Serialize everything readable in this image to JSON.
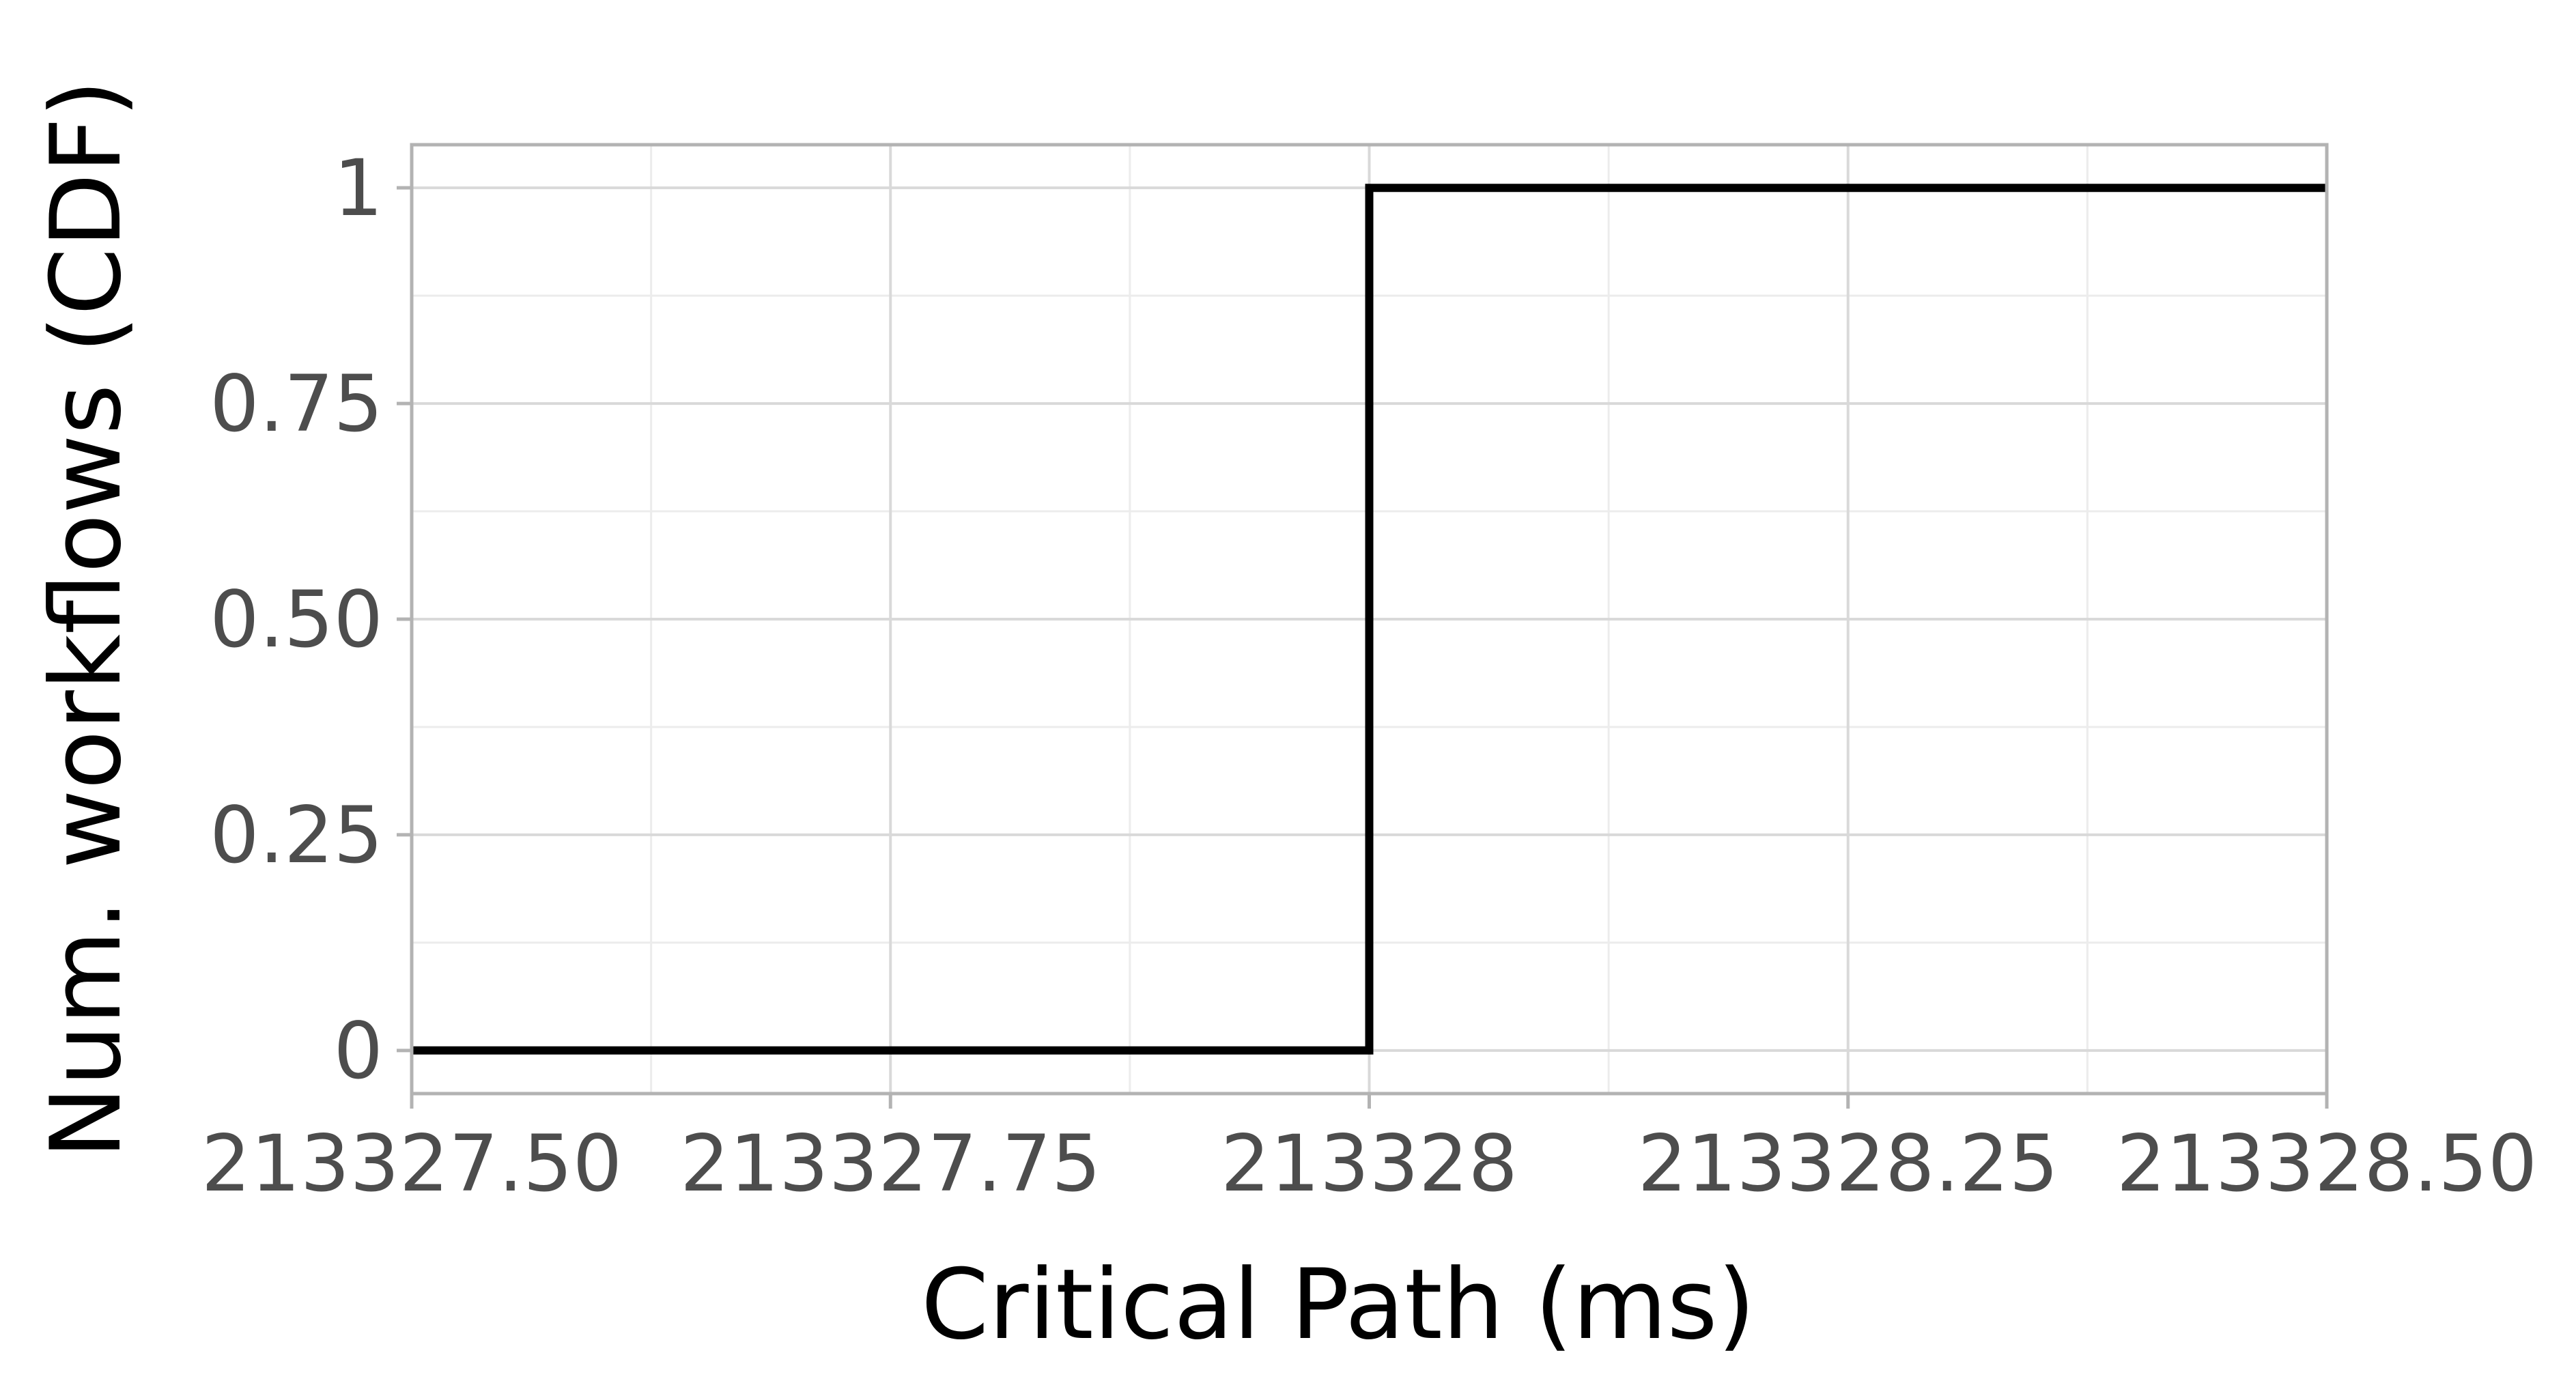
{
  "chart_data": {
    "type": "line",
    "step": true,
    "xlabel": "Critical Path (ms)",
    "ylabel": "Num. workflows (CDF)",
    "xlim": [
      213327.5,
      213328.5
    ],
    "ylim": [
      -0.05,
      1.05
    ],
    "x_ticks": [
      {
        "value": 213327.5,
        "label": "213327.50"
      },
      {
        "value": 213327.75,
        "label": "213327.75"
      },
      {
        "value": 213328.0,
        "label": "213328"
      },
      {
        "value": 213328.25,
        "label": "213328.25"
      },
      {
        "value": 213328.5,
        "label": "213328.50"
      }
    ],
    "x_minor_ticks": [
      213327.625,
      213327.875,
      213328.125,
      213328.375
    ],
    "y_ticks": [
      {
        "value": 0,
        "label": "0"
      },
      {
        "value": 0.25,
        "label": "0.25"
      },
      {
        "value": 0.5,
        "label": "0.50"
      },
      {
        "value": 0.75,
        "label": "0.75"
      },
      {
        "value": 1,
        "label": "1"
      }
    ],
    "y_minor_ticks": [
      0.125,
      0.375,
      0.625,
      0.875
    ],
    "series": [
      {
        "x": [
          213327.5,
          213328.0,
          213328.0,
          213328.5
        ],
        "y": [
          0,
          0,
          1,
          1
        ]
      }
    ],
    "grid": true,
    "colors": {
      "line": "#000000",
      "grid_major": "#d9d9d9",
      "grid_minor": "#ececec",
      "panel_border": "#b3b3b3",
      "tick_text": "#4d4d4d"
    }
  }
}
